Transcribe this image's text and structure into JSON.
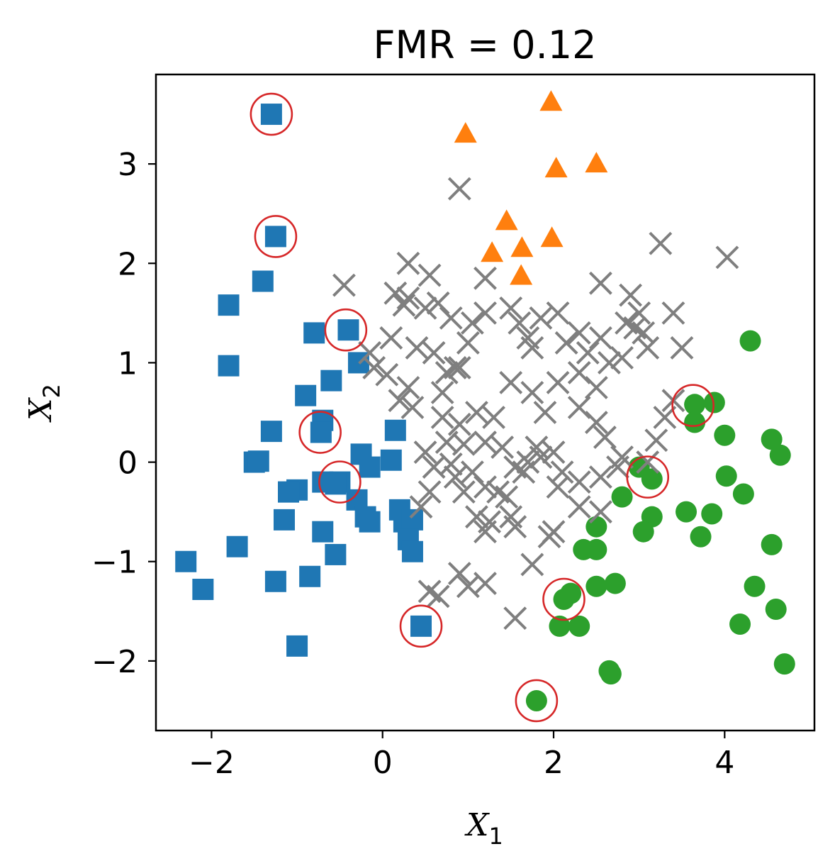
{
  "chart_data": {
    "type": "scatter",
    "title": "FMR = 0.12",
    "xlabel": {
      "base": "X",
      "sub": "1"
    },
    "ylabel": {
      "base": "X",
      "sub": "2"
    },
    "xlim": [
      -2.65,
      5.05
    ],
    "ylim": [
      -2.7,
      3.9
    ],
    "xticks": [
      -2,
      0,
      2,
      4
    ],
    "yticks": [
      -2,
      -1,
      0,
      1,
      2,
      3
    ],
    "xtick_labels": [
      "−2",
      "0",
      "2",
      "4"
    ],
    "ytick_labels": [
      "−2",
      "−1",
      "0",
      "1",
      "2",
      "3"
    ],
    "grid": false,
    "series": [
      {
        "marker": "square",
        "color": "#1f77b4",
        "points": [
          [
            -1.3,
            3.5
          ],
          [
            -1.25,
            2.27
          ],
          [
            -1.4,
            1.82
          ],
          [
            -1.8,
            1.58
          ],
          [
            -1.8,
            0.97
          ],
          [
            -0.8,
            1.3
          ],
          [
            -0.4,
            1.33
          ],
          [
            -0.9,
            0.67
          ],
          [
            -0.6,
            0.82
          ],
          [
            -0.7,
            0.42
          ],
          [
            -0.72,
            0.3
          ],
          [
            -1.3,
            0.31
          ],
          [
            -1.5,
            0.0
          ],
          [
            -1.45,
            0.01
          ],
          [
            -1.0,
            -0.28
          ],
          [
            -1.1,
            -0.3
          ],
          [
            -0.7,
            -0.2
          ],
          [
            -0.5,
            -0.2
          ],
          [
            -0.55,
            -0.22
          ],
          [
            -0.25,
            0.08
          ],
          [
            -0.15,
            -0.05
          ],
          [
            -0.3,
            -0.38
          ],
          [
            -0.2,
            -0.55
          ],
          [
            -0.15,
            -0.6
          ],
          [
            0.1,
            0.02
          ],
          [
            0.15,
            0.32
          ],
          [
            0.2,
            -0.48
          ],
          [
            0.25,
            -0.6
          ],
          [
            0.35,
            -0.58
          ],
          [
            0.3,
            -0.78
          ],
          [
            0.35,
            -0.9
          ],
          [
            -0.28,
            1.0
          ],
          [
            -1.15,
            -0.58
          ],
          [
            -0.7,
            -0.7
          ],
          [
            -1.7,
            -0.85
          ],
          [
            -0.55,
            -0.93
          ],
          [
            -2.3,
            -1.0
          ],
          [
            -2.1,
            -1.28
          ],
          [
            -1.25,
            -1.2
          ],
          [
            -0.85,
            -1.15
          ],
          [
            -1.0,
            -1.85
          ],
          [
            0.45,
            -1.65
          ]
        ]
      },
      {
        "marker": "triangle",
        "color": "#ff7f0e",
        "points": [
          [
            1.97,
            3.62
          ],
          [
            0.97,
            3.3
          ],
          [
            2.5,
            3.0
          ],
          [
            2.03,
            2.95
          ],
          [
            1.45,
            2.42
          ],
          [
            1.98,
            2.25
          ],
          [
            1.63,
            2.15
          ],
          [
            1.28,
            2.1
          ],
          [
            1.62,
            1.87
          ]
        ]
      },
      {
        "marker": "circle",
        "color": "#2ca02c",
        "points": [
          [
            4.3,
            1.22
          ],
          [
            3.65,
            0.58
          ],
          [
            3.88,
            0.6
          ],
          [
            3.65,
            0.4
          ],
          [
            4.0,
            0.27
          ],
          [
            4.55,
            0.23
          ],
          [
            4.65,
            0.07
          ],
          [
            3.0,
            -0.05
          ],
          [
            3.15,
            -0.17
          ],
          [
            4.02,
            -0.14
          ],
          [
            4.22,
            -0.32
          ],
          [
            2.8,
            -0.35
          ],
          [
            3.15,
            -0.55
          ],
          [
            3.55,
            -0.5
          ],
          [
            3.85,
            -0.52
          ],
          [
            2.5,
            -0.65
          ],
          [
            3.05,
            -0.7
          ],
          [
            3.72,
            -0.75
          ],
          [
            2.35,
            -0.88
          ],
          [
            2.5,
            -0.88
          ],
          [
            4.55,
            -0.83
          ],
          [
            2.5,
            -1.25
          ],
          [
            2.72,
            -1.22
          ],
          [
            4.35,
            -1.25
          ],
          [
            2.12,
            -1.38
          ],
          [
            2.2,
            -1.32
          ],
          [
            4.6,
            -1.48
          ],
          [
            2.07,
            -1.65
          ],
          [
            2.3,
            -1.65
          ],
          [
            4.18,
            -1.63
          ],
          [
            4.7,
            -2.03
          ],
          [
            2.65,
            -2.1
          ],
          [
            2.67,
            -2.13
          ],
          [
            1.8,
            -2.4
          ]
        ]
      },
      {
        "marker": "x",
        "color": "#7f7f7f",
        "points": [
          [
            0.9,
            2.75
          ],
          [
            3.25,
            2.2
          ],
          [
            4.03,
            2.06
          ],
          [
            -0.45,
            1.78
          ],
          [
            0.3,
            2.0
          ],
          [
            0.55,
            1.88
          ],
          [
            0.65,
            1.6
          ],
          [
            0.25,
            1.58
          ],
          [
            1.2,
            1.85
          ],
          [
            2.55,
            1.8
          ],
          [
            2.9,
            1.68
          ],
          [
            3.0,
            1.5
          ],
          [
            3.4,
            1.5
          ],
          [
            2.95,
            1.35
          ],
          [
            0.15,
            1.7
          ],
          [
            0.3,
            1.65
          ],
          [
            0.5,
            1.55
          ],
          [
            0.8,
            1.45
          ],
          [
            1.05,
            1.4
          ],
          [
            1.2,
            1.5
          ],
          [
            1.5,
            1.55
          ],
          [
            1.6,
            1.4
          ],
          [
            1.85,
            1.45
          ],
          [
            2.05,
            1.5
          ],
          [
            2.3,
            1.3
          ],
          [
            2.55,
            1.25
          ],
          [
            2.85,
            1.4
          ],
          [
            3.05,
            1.3
          ],
          [
            3.5,
            1.15
          ],
          [
            0.1,
            1.25
          ],
          [
            -0.15,
            1.1
          ],
          [
            0.4,
            1.15
          ],
          [
            0.6,
            1.1
          ],
          [
            0.85,
            0.95
          ],
          [
            1.0,
            1.2
          ],
          [
            1.7,
            1.25
          ],
          [
            1.75,
            1.15
          ],
          [
            2.15,
            1.2
          ],
          [
            2.4,
            1.1
          ],
          [
            2.65,
            1.0
          ],
          [
            2.8,
            1.05
          ],
          [
            3.1,
            1.15
          ],
          [
            -0.1,
            0.95
          ],
          [
            0.05,
            0.88
          ],
          [
            0.3,
            0.75
          ],
          [
            0.75,
            0.9
          ],
          [
            0.9,
            0.95
          ],
          [
            1.5,
            0.8
          ],
          [
            1.75,
            0.7
          ],
          [
            2.05,
            0.8
          ],
          [
            2.3,
            0.9
          ],
          [
            2.5,
            0.75
          ],
          [
            3.4,
            0.62
          ],
          [
            0.2,
            0.62
          ],
          [
            0.35,
            0.55
          ],
          [
            0.7,
            0.45
          ],
          [
            0.9,
            0.38
          ],
          [
            1.1,
            0.5
          ],
          [
            1.3,
            0.45
          ],
          [
            1.9,
            0.5
          ],
          [
            2.3,
            0.55
          ],
          [
            2.5,
            0.4
          ],
          [
            3.3,
            0.45
          ],
          [
            0.75,
            0.2
          ],
          [
            0.95,
            0.18
          ],
          [
            1.2,
            0.2
          ],
          [
            1.4,
            0.15
          ],
          [
            1.8,
            0.15
          ],
          [
            2.0,
            0.1
          ],
          [
            2.6,
            0.25
          ],
          [
            3.2,
            0.22
          ],
          [
            0.5,
            0.1
          ],
          [
            0.6,
            -0.05
          ],
          [
            0.8,
            -0.02
          ],
          [
            1.05,
            -0.1
          ],
          [
            1.55,
            -0.05
          ],
          [
            1.7,
            0.0
          ],
          [
            1.85,
            0.05
          ],
          [
            2.1,
            -0.1
          ],
          [
            2.3,
            -0.2
          ],
          [
            2.8,
            0.05
          ],
          [
            3.1,
            0.0
          ],
          [
            0.55,
            -0.3
          ],
          [
            0.85,
            -0.15
          ],
          [
            0.95,
            -0.3
          ],
          [
            1.2,
            -0.25
          ],
          [
            1.45,
            -0.35
          ],
          [
            1.65,
            -0.1
          ],
          [
            2.05,
            -0.25
          ],
          [
            2.55,
            -0.15
          ],
          [
            2.75,
            -0.05
          ],
          [
            0.45,
            -0.45
          ],
          [
            1.1,
            -0.55
          ],
          [
            1.25,
            -0.6
          ],
          [
            1.5,
            -0.55
          ],
          [
            2.3,
            -0.45
          ],
          [
            2.55,
            -0.5
          ],
          [
            1.2,
            -0.7
          ],
          [
            1.55,
            -0.65
          ],
          [
            1.95,
            -0.75
          ],
          [
            2.0,
            -0.7
          ],
          [
            1.75,
            -1.03
          ],
          [
            0.9,
            -1.12
          ],
          [
            1.0,
            -1.25
          ],
          [
            1.2,
            -1.22
          ],
          [
            0.55,
            -1.3
          ],
          [
            0.65,
            -1.35
          ],
          [
            1.55,
            -1.57
          ],
          [
            1.35,
            -0.3
          ],
          [
            0.7,
            0.7
          ]
        ]
      }
    ],
    "highlighted": {
      "marker": "open-circle",
      "color": "#d62728",
      "points": [
        [
          -1.3,
          3.5
        ],
        [
          -1.25,
          2.27
        ],
        [
          -0.43,
          1.33
        ],
        [
          -0.73,
          0.3
        ],
        [
          -0.5,
          -0.2
        ],
        [
          0.45,
          -1.65
        ],
        [
          1.8,
          -2.4
        ],
        [
          2.12,
          -1.38
        ],
        [
          3.1,
          -0.15
        ],
        [
          3.63,
          0.57
        ]
      ]
    }
  }
}
